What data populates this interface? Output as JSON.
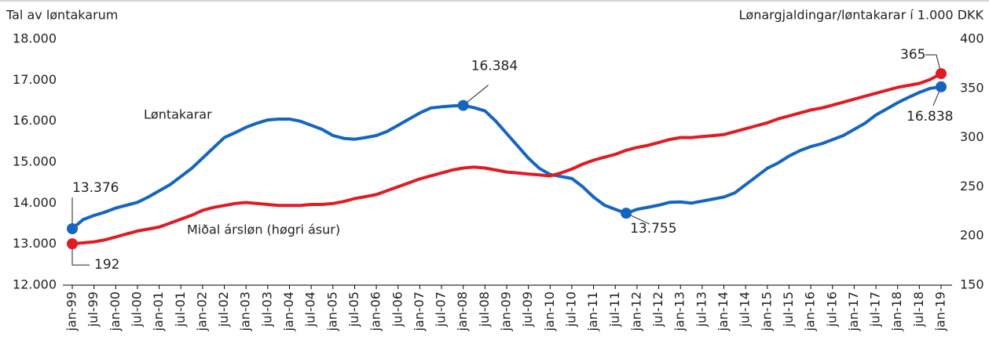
{
  "chart_data": {
    "type": "line",
    "y_label": "Tal av løntakarum",
    "y2_label": "Lønargjaldingar/løntakarar í 1.000 DKK",
    "categories": [
      "jan-99",
      null,
      "jul-99",
      null,
      "jan-00",
      null,
      "jul-00",
      null,
      "jan-01",
      null,
      "jul-01",
      null,
      "jan-02",
      null,
      "jul-02",
      null,
      "jan-03",
      null,
      "jul-03",
      null,
      "jan-04",
      null,
      "jul-04",
      null,
      "jan-05",
      null,
      "jul-05",
      null,
      "jan-06",
      null,
      "jul-06",
      null,
      "jan-07",
      null,
      "jul-07",
      null,
      "jan-08",
      null,
      "jul-08",
      null,
      "jan-09",
      null,
      "jul-09",
      null,
      "jan-10",
      null,
      "jul-10",
      null,
      "jan-11",
      null,
      "jul-11",
      null,
      "jan-12",
      null,
      "jul-12",
      null,
      "jan-13",
      null,
      "jul-13",
      null,
      "jan-14",
      null,
      "jul-14",
      null,
      "jan-15",
      null,
      "jul-15",
      null,
      "jan-16",
      null,
      "jul-16",
      null,
      "jan-17",
      null,
      "jul-17",
      null,
      "jan-18",
      null,
      "jul-18",
      null,
      "jan-19"
    ],
    "ylim": [
      12000,
      18000
    ],
    "yticks": [
      {
        "value": 12000,
        "label": "12.000"
      },
      {
        "value": 13000,
        "label": "13.000"
      },
      {
        "value": 14000,
        "label": "14.000"
      },
      {
        "value": 15000,
        "label": "15.000"
      },
      {
        "value": 16000,
        "label": "16.000"
      },
      {
        "value": 17000,
        "label": "17.000"
      },
      {
        "value": 18000,
        "label": "18.000"
      }
    ],
    "y2lim": [
      150,
      400
    ],
    "y2ticks": [
      150,
      200,
      250,
      300,
      350,
      400
    ],
    "series": [
      {
        "name": "Løntakarar",
        "color": "#1565c0",
        "axis": "y",
        "values": [
          13376,
          13600,
          13700,
          13780,
          13880,
          13950,
          14020,
          14150,
          14300,
          14450,
          14650,
          14850,
          15100,
          15350,
          15600,
          15720,
          15850,
          15950,
          16030,
          16050,
          16050,
          16000,
          15900,
          15800,
          15650,
          15580,
          15560,
          15600,
          15650,
          15750,
          15900,
          16050,
          16200,
          16320,
          16350,
          16370,
          16384,
          16330,
          16250,
          16000,
          15700,
          15400,
          15100,
          14850,
          14700,
          14650,
          14600,
          14400,
          14150,
          13950,
          13850,
          13755,
          13850,
          13900,
          13950,
          14020,
          14030,
          14000,
          14050,
          14100,
          14150,
          14250,
          14450,
          14650,
          14850,
          14980,
          15150,
          15280,
          15380,
          15450,
          15550,
          15650,
          15800,
          15950,
          16150,
          16300,
          16450,
          16580,
          16700,
          16800,
          16838
        ],
        "value_labels": [
          "13.376",
          null,
          null,
          null,
          null,
          null,
          null,
          null,
          null,
          null,
          null,
          null,
          null,
          null,
          null,
          null,
          null,
          null,
          null,
          null,
          null,
          null,
          null,
          null,
          null,
          null,
          null,
          null,
          null,
          null,
          null,
          null,
          null,
          null,
          null,
          null,
          "16.384",
          null,
          null,
          null,
          null,
          null,
          null,
          null,
          null,
          null,
          null,
          null,
          null,
          null,
          null,
          "13.755",
          null,
          null,
          null,
          null,
          null,
          null,
          null,
          null,
          null,
          null,
          null,
          null,
          null,
          null,
          null,
          null,
          null,
          null,
          null,
          null,
          null,
          null,
          null,
          null,
          null,
          null,
          null,
          null,
          "16.838"
        ]
      },
      {
        "name": "Miðal ársløn (høgri ásur)",
        "color": "#e01b24",
        "axis": "y2",
        "values": [
          192,
          193,
          194,
          196,
          199,
          202,
          205,
          207,
          209,
          213,
          217,
          221,
          226,
          229,
          231,
          233,
          234,
          233,
          232,
          231,
          231,
          231,
          232,
          232,
          233,
          235,
          238,
          240,
          242,
          246,
          250,
          254,
          258,
          261,
          264,
          267,
          269,
          270,
          269,
          267,
          265,
          264,
          263,
          262,
          261,
          264,
          268,
          273,
          277,
          280,
          283,
          287,
          290,
          292,
          295,
          298,
          300,
          300,
          301,
          302,
          303,
          306,
          309,
          312,
          315,
          319,
          322,
          325,
          328,
          330,
          333,
          336,
          339,
          342,
          345,
          348,
          351,
          353,
          355,
          359,
          365
        ],
        "value_labels": [
          "192",
          null,
          null,
          null,
          null,
          null,
          null,
          null,
          null,
          null,
          null,
          null,
          null,
          null,
          null,
          null,
          null,
          null,
          null,
          null,
          null,
          null,
          null,
          null,
          null,
          null,
          null,
          null,
          null,
          null,
          null,
          null,
          null,
          null,
          null,
          null,
          null,
          null,
          null,
          null,
          null,
          null,
          null,
          null,
          null,
          null,
          null,
          null,
          null,
          null,
          null,
          null,
          null,
          null,
          null,
          null,
          null,
          null,
          null,
          null,
          null,
          null,
          null,
          null,
          null,
          null,
          null,
          null,
          null,
          null,
          null,
          null,
          null,
          null,
          null,
          null,
          null,
          null,
          null,
          null,
          "365"
        ]
      }
    ]
  }
}
